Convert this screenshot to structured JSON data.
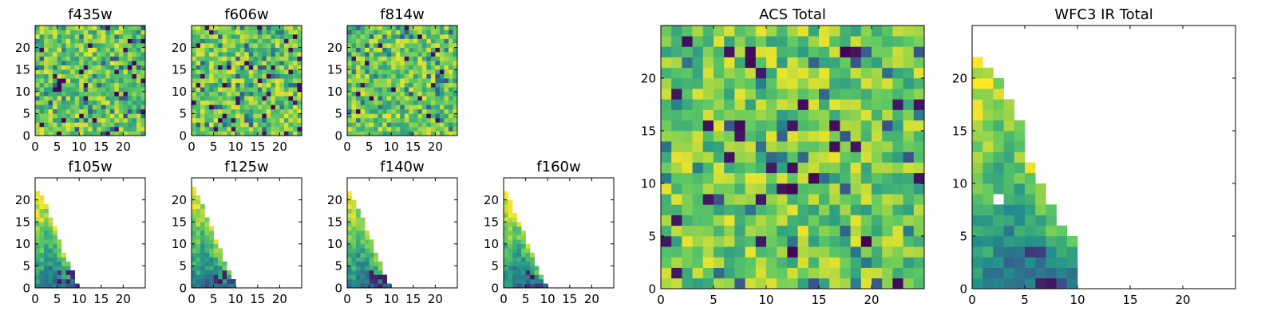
{
  "chart_data": [
    {
      "type": "heatmap",
      "title": "f435w",
      "xlabel": "",
      "ylabel": "",
      "xlim": [
        0,
        25
      ],
      "ylim": [
        0,
        25
      ],
      "xticks": [
        "0",
        "5",
        "10",
        "15",
        "20"
      ],
      "yticks": [
        "0",
        "5",
        "10",
        "15",
        "20"
      ],
      "coverage": "full",
      "value_range": [
        0,
        1
      ],
      "colormap": "viridis",
      "note_values": "dense 25x25 grid of mostly high (green-yellow) values with scattered low (dark purple) cells"
    },
    {
      "type": "heatmap",
      "title": "f606w",
      "xlabel": "",
      "ylabel": "",
      "xlim": [
        0,
        25
      ],
      "ylim": [
        0,
        25
      ],
      "xticks": [
        "0",
        "5",
        "10",
        "15",
        "20"
      ],
      "yticks": [
        "0",
        "5",
        "10",
        "15",
        "20"
      ],
      "coverage": "full",
      "value_range": [
        0,
        1
      ],
      "colormap": "viridis"
    },
    {
      "type": "heatmap",
      "title": "f814w",
      "xlabel": "",
      "ylabel": "",
      "xlim": [
        0,
        25
      ],
      "ylim": [
        0,
        25
      ],
      "xticks": [
        "0",
        "5",
        "10",
        "15",
        "20"
      ],
      "yticks": [
        "0",
        "5",
        "10",
        "15",
        "20"
      ],
      "coverage": "full",
      "value_range": [
        0,
        1
      ],
      "colormap": "viridis"
    },
    {
      "type": "heatmap",
      "title": "f105w",
      "xlabel": "",
      "ylabel": "",
      "xlim": [
        0,
        25
      ],
      "ylim": [
        0,
        25
      ],
      "xticks": [
        "0",
        "5",
        "10",
        "15",
        "20"
      ],
      "yticks": [
        "0",
        "5",
        "10",
        "15",
        "20"
      ],
      "coverage": "triangle",
      "edge": [
        [
          0,
          22
        ],
        [
          1,
          21
        ],
        [
          2,
          19
        ],
        [
          3,
          16
        ],
        [
          4,
          14
        ],
        [
          5,
          11
        ],
        [
          6,
          8
        ],
        [
          7,
          6
        ],
        [
          8,
          4
        ],
        [
          9,
          1
        ]
      ],
      "colormap": "viridis"
    },
    {
      "type": "heatmap",
      "title": "f125w",
      "xlabel": "",
      "ylabel": "",
      "xlim": [
        0,
        25
      ],
      "ylim": [
        0,
        25
      ],
      "xticks": [
        "0",
        "5",
        "10",
        "15",
        "20"
      ],
      "yticks": [
        "0",
        "5",
        "10",
        "15",
        "20"
      ],
      "coverage": "triangle",
      "edge": [
        [
          0,
          23
        ],
        [
          1,
          21
        ],
        [
          2,
          19
        ],
        [
          3,
          16
        ],
        [
          4,
          14
        ],
        [
          5,
          11
        ],
        [
          6,
          9
        ],
        [
          7,
          6
        ],
        [
          8,
          4
        ],
        [
          9,
          2
        ]
      ],
      "colormap": "viridis"
    },
    {
      "type": "heatmap",
      "title": "f140w",
      "xlabel": "",
      "ylabel": "",
      "xlim": [
        0,
        25
      ],
      "ylim": [
        0,
        25
      ],
      "xticks": [
        "0",
        "5",
        "10",
        "15",
        "20"
      ],
      "yticks": [
        "0",
        "5",
        "10",
        "15",
        "20"
      ],
      "coverage": "triangle",
      "edge": [
        [
          0,
          22
        ],
        [
          1,
          20
        ],
        [
          2,
          18
        ],
        [
          3,
          16
        ],
        [
          4,
          13
        ],
        [
          5,
          11
        ],
        [
          6,
          8
        ],
        [
          7,
          6
        ],
        [
          8,
          3
        ],
        [
          9,
          1
        ]
      ],
      "colormap": "viridis"
    },
    {
      "type": "heatmap",
      "title": "f160w",
      "xlabel": "",
      "ylabel": "",
      "xlim": [
        0,
        25
      ],
      "ylim": [
        0,
        25
      ],
      "xticks": [
        "0",
        "5",
        "10",
        "15",
        "20"
      ],
      "yticks": [
        "0",
        "5",
        "10",
        "15",
        "20"
      ],
      "coverage": "triangle",
      "edge": [
        [
          0,
          22
        ],
        [
          1,
          20
        ],
        [
          2,
          17
        ],
        [
          3,
          15
        ],
        [
          4,
          13
        ],
        [
          5,
          10
        ],
        [
          6,
          8
        ],
        [
          7,
          5
        ],
        [
          8,
          3
        ],
        [
          9,
          1
        ]
      ],
      "colormap": "viridis"
    },
    {
      "type": "heatmap",
      "title": "ACS Total",
      "xlabel": "",
      "ylabel": "",
      "xlim": [
        0,
        25
      ],
      "ylim": [
        0,
        25
      ],
      "xticks": [
        "0",
        "5",
        "10",
        "15",
        "20"
      ],
      "yticks": [
        "0",
        "5",
        "10",
        "15",
        "20"
      ],
      "coverage": "full",
      "colormap": "viridis"
    },
    {
      "type": "heatmap",
      "title": "WFC3 IR Total",
      "xlabel": "",
      "ylabel": "",
      "xlim": [
        0,
        25
      ],
      "ylim": [
        0,
        25
      ],
      "xticks": [
        "0",
        "5",
        "10",
        "15",
        "20"
      ],
      "yticks": [
        "0",
        "5",
        "10",
        "15",
        "20"
      ],
      "coverage": "triangle",
      "edge": [
        [
          0,
          22
        ],
        [
          1,
          21
        ],
        [
          2,
          20
        ],
        [
          3,
          18
        ],
        [
          4,
          16
        ],
        [
          5,
          12
        ],
        [
          6,
          10
        ],
        [
          7,
          8
        ],
        [
          8,
          6
        ],
        [
          9,
          5
        ]
      ],
      "missing_cells": [
        [
          2,
          8
        ]
      ],
      "colormap": "viridis"
    }
  ]
}
